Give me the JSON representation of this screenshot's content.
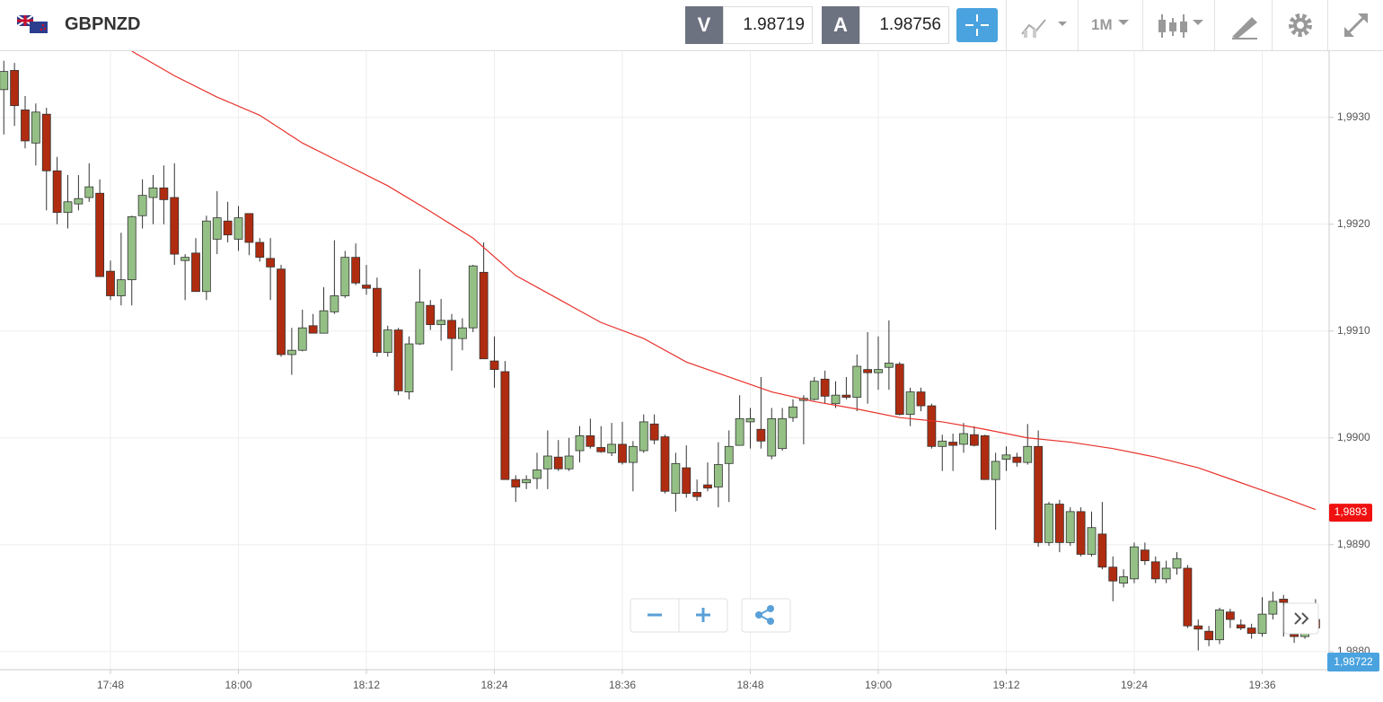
{
  "header": {
    "symbol": "GBPNZD",
    "bid_label": "V",
    "bid": 1.98719,
    "ask_label": "A",
    "ask": 1.98756,
    "timeframe": "1M"
  },
  "chart_data": {
    "type": "candlestick",
    "x": [
      "17:38",
      "17:39",
      "17:40",
      "17:41",
      "17:42",
      "17:43",
      "17:44",
      "17:45",
      "17:46",
      "17:47",
      "17:48",
      "17:49",
      "17:50",
      "17:51",
      "17:52",
      "17:53",
      "17:54",
      "17:55",
      "17:56",
      "17:57",
      "17:58",
      "17:59",
      "18:00",
      "18:01",
      "18:02",
      "18:03",
      "18:04",
      "18:05",
      "18:06",
      "18:07",
      "18:08",
      "18:09",
      "18:10",
      "18:11",
      "18:12",
      "18:13",
      "18:14",
      "18:15",
      "18:16",
      "18:17",
      "18:18",
      "18:19",
      "18:20",
      "18:21",
      "18:22",
      "18:23",
      "18:24",
      "18:25",
      "18:26",
      "18:27",
      "18:28",
      "18:29",
      "18:30",
      "18:31",
      "18:32",
      "18:33",
      "18:34",
      "18:35",
      "18:36",
      "18:37",
      "18:38",
      "18:39",
      "18:40",
      "18:41",
      "18:42",
      "18:43",
      "18:44",
      "18:45",
      "18:46",
      "18:47",
      "18:48",
      "18:49",
      "18:50",
      "18:51",
      "18:52",
      "18:53",
      "18:54",
      "18:55",
      "18:56",
      "18:57",
      "18:58",
      "18:59",
      "19:00",
      "19:01",
      "19:02",
      "19:03",
      "19:04",
      "19:05",
      "19:06",
      "19:07",
      "19:08",
      "19:09",
      "19:10",
      "19:11",
      "19:12",
      "19:13",
      "19:14",
      "19:15",
      "19:16",
      "19:17",
      "19:18",
      "19:19",
      "19:20",
      "19:21",
      "19:22",
      "19:23",
      "19:24",
      "19:25",
      "19:26",
      "19:27",
      "19:28",
      "19:29",
      "19:30",
      "19:31",
      "19:32",
      "19:33",
      "19:34",
      "19:35",
      "19:36",
      "19:37",
      "19:38",
      "19:39",
      "19:40",
      "19:41"
    ],
    "open": [
      1.99326,
      1.99344,
      1.99307,
      1.99276,
      1.99303,
      1.9925,
      1.99211,
      1.99219,
      1.99225,
      1.99229,
      1.99156,
      1.99133,
      1.99148,
      1.99208,
      1.99225,
      1.99234,
      1.99225,
      1.99166,
      1.99173,
      1.99137,
      1.99186,
      1.99203,
      1.99186,
      1.9921,
      1.99183,
      1.99168,
      1.99158,
      1.99078,
      1.99082,
      1.99105,
      1.99098,
      1.99118,
      1.99133,
      1.99169,
      1.99143,
      1.9914,
      1.9908,
      1.99101,
      1.99043,
      1.99088,
      1.99124,
      1.99106,
      1.9911,
      1.99093,
      1.99103,
      1.99155,
      1.99072,
      1.99062,
      1.98961,
      1.98958,
      1.98962,
      1.98971,
      1.98982,
      1.98971,
      1.98988,
      1.99002,
      1.98991,
      1.98986,
      1.98994,
      1.98977,
      1.98988,
      1.99013,
      1.99001,
      1.98948,
      1.98972,
      1.98949,
      1.98956,
      1.98954,
      1.98976,
      1.98993,
      1.99015,
      1.99008,
      1.98983,
      1.9899,
      1.99019,
      1.99035,
      1.99036,
      1.99055,
      1.99032,
      1.9904,
      1.99038,
      1.99064,
      1.99061,
      1.99066,
      1.99069,
      1.99022,
      1.99043,
      1.9903,
      1.98992,
      1.98996,
      1.98994,
      1.99003,
      1.99002,
      1.98961,
      1.9898,
      1.98982,
      1.98977,
      1.98992,
      1.98902,
      1.98938,
      1.98902,
      1.98931,
      1.98891,
      1.9891,
      1.98879,
      1.98864,
      1.98868,
      1.98895,
      1.98884,
      1.98868,
      1.98878,
      1.98878,
      1.98824,
      1.98819,
      1.98811,
      1.98837,
      1.98825,
      1.98822,
      1.98817,
      1.98835,
      1.98849,
      1.98816,
      1.98814,
      1.9883
    ],
    "high": [
      1.99353,
      1.99351,
      1.9932,
      1.99313,
      1.99309,
      1.99263,
      1.99246,
      1.99246,
      1.99257,
      1.99242,
      1.99166,
      1.99192,
      1.99208,
      1.99242,
      1.99246,
      1.99255,
      1.99257,
      1.99172,
      1.99187,
      1.99208,
      1.99231,
      1.99221,
      1.99217,
      1.9921,
      1.99187,
      1.99187,
      1.99162,
      1.99103,
      1.9912,
      1.99116,
      1.99141,
      1.99185,
      1.99175,
      1.99182,
      1.99162,
      1.9915,
      1.99105,
      1.99103,
      1.99095,
      1.99158,
      1.99129,
      1.9913,
      1.99116,
      1.99112,
      1.99162,
      1.99183,
      1.99095,
      1.99072,
      1.98965,
      1.98965,
      1.98986,
      1.99007,
      1.98998,
      1.99,
      1.99011,
      1.99018,
      1.99011,
      1.99014,
      1.99015,
      1.98997,
      1.99022,
      1.99022,
      1.99003,
      1.98986,
      1.98993,
      1.98961,
      1.98977,
      1.98996,
      1.99007,
      1.9904,
      1.99028,
      1.99057,
      1.99028,
      1.99028,
      1.99036,
      1.9904,
      1.99057,
      1.99063,
      1.99053,
      1.99057,
      1.99078,
      1.99099,
      1.99095,
      1.9911,
      1.99071,
      1.99047,
      1.99047,
      1.99032,
      1.99003,
      1.99004,
      1.99014,
      1.99011,
      1.99003,
      1.98986,
      1.98992,
      1.98986,
      1.99013,
      1.99007,
      1.9894,
      1.98942,
      1.98935,
      1.98935,
      1.98931,
      1.9894,
      1.98889,
      1.98877,
      1.98902,
      1.98902,
      1.98889,
      1.98885,
      1.98893,
      1.98881,
      1.9883,
      1.98824,
      1.98841,
      1.9884,
      1.9883,
      1.98826,
      1.98851,
      1.98856,
      1.98853,
      1.98824,
      1.9883,
      1.98849
    ],
    "low": [
      1.99284,
      1.99292,
      1.99271,
      1.99255,
      1.99213,
      1.992,
      1.99196,
      1.99213,
      1.99221,
      1.99151,
      1.99129,
      1.99124,
      1.99124,
      1.99196,
      1.992,
      1.992,
      1.99162,
      1.99129,
      1.99137,
      1.99129,
      1.99172,
      1.99183,
      1.99175,
      1.99171,
      1.99165,
      1.99129,
      1.99076,
      1.99059,
      1.99081,
      1.99098,
      1.99098,
      1.99116,
      1.99131,
      1.99143,
      1.99134,
      1.99076,
      1.99076,
      1.9904,
      1.99036,
      1.99087,
      1.99101,
      1.99091,
      1.99063,
      1.99082,
      1.99099,
      1.99074,
      1.99047,
      1.98961,
      1.9894,
      1.98952,
      1.98952,
      1.98952,
      1.98969,
      1.98969,
      1.98977,
      1.9899,
      1.98986,
      1.98983,
      1.98975,
      1.9895,
      1.98986,
      1.98994,
      1.98948,
      1.98931,
      1.98944,
      1.98941,
      1.9895,
      1.98935,
      1.9894,
      1.98993,
      1.9899,
      1.9899,
      1.9898,
      1.98988,
      1.99015,
      1.98994,
      1.99035,
      1.99032,
      1.99028,
      1.99036,
      1.99025,
      1.99032,
      1.99045,
      1.99045,
      1.99021,
      1.99011,
      1.99025,
      1.9899,
      1.98969,
      1.98969,
      1.98986,
      1.98992,
      1.98961,
      1.98914,
      1.98969,
      1.98973,
      1.98975,
      1.98898,
      1.98899,
      1.98893,
      1.98899,
      1.98889,
      1.98889,
      1.98877,
      1.98847,
      1.9886,
      1.98864,
      1.98881,
      1.98864,
      1.98864,
      1.98872,
      1.98822,
      1.98801,
      1.98805,
      1.98807,
      1.98822,
      1.9882,
      1.98812,
      1.98814,
      1.9883,
      1.98814,
      1.98808,
      1.98812,
      1.9882
    ],
    "close": [
      1.99343,
      1.99311,
      1.99278,
      1.99305,
      1.9925,
      1.99211,
      1.99221,
      1.99224,
      1.99235,
      1.99151,
      1.99133,
      1.99148,
      1.99207,
      1.99227,
      1.99234,
      1.99223,
      1.99172,
      1.99169,
      1.99137,
      1.99203,
      1.99206,
      1.9919,
      1.99206,
      1.99183,
      1.99169,
      1.9916,
      1.99078,
      1.99082,
      1.99103,
      1.99098,
      1.99119,
      1.99133,
      1.99169,
      1.99145,
      1.9914,
      1.9908,
      1.99101,
      1.99044,
      1.99088,
      1.99127,
      1.99106,
      1.9911,
      1.99093,
      1.99103,
      1.99161,
      1.99074,
      1.99064,
      1.98961,
      1.98954,
      1.98961,
      1.9897,
      1.98983,
      1.98971,
      1.98983,
      1.99002,
      1.98992,
      1.98987,
      1.98994,
      1.98977,
      1.98992,
      1.99015,
      1.98998,
      1.9895,
      1.98976,
      1.98948,
      1.98945,
      1.98953,
      1.98975,
      1.98992,
      1.99018,
      1.99018,
      1.98997,
      1.99018,
      1.99018,
      1.99029,
      1.99037,
      1.99053,
      1.99039,
      1.9904,
      1.99038,
      1.99067,
      1.99061,
      1.99064,
      1.9907,
      1.99022,
      1.99043,
      1.9903,
      1.98992,
      1.98997,
      1.98993,
      1.99004,
      1.98993,
      1.98961,
      1.98978,
      1.98984,
      1.98977,
      1.98992,
      1.98902,
      1.98938,
      1.98902,
      1.98931,
      1.98891,
      1.98916,
      1.98879,
      1.98866,
      1.9887,
      1.98898,
      1.98885,
      1.98868,
      1.98878,
      1.98887,
      1.98824,
      1.98821,
      1.98811,
      1.98839,
      1.9883,
      1.98822,
      1.98817,
      1.98835,
      1.98847,
      1.98846,
      1.98814,
      1.9882,
      1.98822
    ],
    "up_color": "#94c085",
    "down_color": "#b02c10",
    "moving_average": {
      "color": "#e8312a",
      "x": [
        "17:50",
        "17:54",
        "17:58",
        "18:02",
        "18:06",
        "18:10",
        "18:14",
        "18:18",
        "18:22",
        "18:26",
        "18:30",
        "18:34",
        "18:38",
        "18:42",
        "18:46",
        "18:50",
        "18:54",
        "18:58",
        "19:02",
        "19:06",
        "19:10",
        "19:14",
        "19:18",
        "19:22",
        "19:26",
        "19:30",
        "19:34",
        "19:38",
        "19:41"
      ],
      "values": [
        1.99362,
        1.99339,
        1.99319,
        1.99302,
        1.99276,
        1.99256,
        1.99236,
        1.99212,
        1.99187,
        1.99152,
        1.9913,
        1.99108,
        1.99093,
        1.99071,
        1.99057,
        1.99043,
        1.99034,
        1.99027,
        1.99019,
        1.99015,
        1.99008,
        1.99,
        1.98996,
        1.9899,
        1.98982,
        1.98972,
        1.98958,
        1.98944,
        1.98933
      ],
      "price_label": {
        "value": 1.9893,
        "label": "1,9893"
      }
    },
    "last_price": {
      "value": 1.98722,
      "label": "1,98722"
    },
    "ylim": [
      1.98783,
      1.99362
    ],
    "yticks": [
      {
        "value": 1.988,
        "label": "1,9880"
      },
      {
        "value": 1.989,
        "label": "1,9890"
      },
      {
        "value": 1.99,
        "label": "1,9900"
      },
      {
        "value": 1.991,
        "label": "1,9910"
      },
      {
        "value": 1.992,
        "label": "1,9920"
      },
      {
        "value": 1.993,
        "label": "1,9930"
      }
    ],
    "xticks": [
      "17:48",
      "18:00",
      "18:12",
      "18:24",
      "18:36",
      "18:48",
      "19:00",
      "19:12",
      "19:24",
      "19:36"
    ],
    "grid": true
  }
}
